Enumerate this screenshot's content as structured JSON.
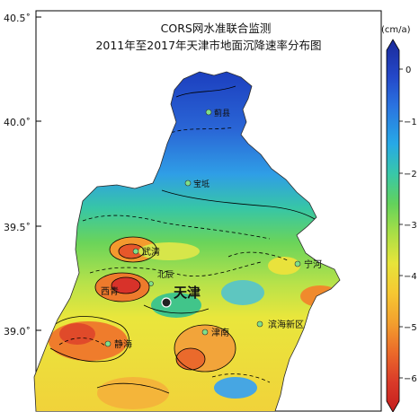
{
  "title_line1": "CORS网水准联合监测",
  "title_line2": "2011年至2017年天津市地面沉降速率分布图",
  "lat_ticks": [
    "40.5˚",
    "40.0˚",
    "39.5˚",
    "39.0˚"
  ],
  "colorbar": {
    "unit": "(cm/a)",
    "ticks": [
      "0",
      "−1",
      "−2",
      "−3",
      "−4",
      "−5",
      "−6"
    ],
    "colors": [
      "#1f2f9e",
      "#2f66d8",
      "#2aa0e8",
      "#3cc9a0",
      "#67d455",
      "#a8e046",
      "#e7e53a",
      "#f5c531",
      "#f29a2e",
      "#e9642a",
      "#d9342a",
      "#c41e1e"
    ]
  },
  "places": {
    "jixian": "蓟县",
    "baodi": "宝坻",
    "wuqing": "武清",
    "beichen": "北辰",
    "tianjin": "天津",
    "xiqing": "西青",
    "ninghe": "宁河",
    "binhai": "滨海新区",
    "jinnan": "津南",
    "jinghai": "静海"
  }
}
